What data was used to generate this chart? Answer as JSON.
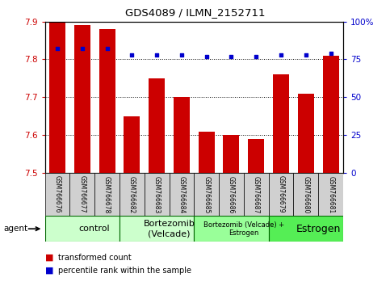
{
  "title": "GDS4089 / ILMN_2152711",
  "samples": [
    "GSM766676",
    "GSM766677",
    "GSM766678",
    "GSM766682",
    "GSM766683",
    "GSM766684",
    "GSM766685",
    "GSM766686",
    "GSM766687",
    "GSM766679",
    "GSM766680",
    "GSM766681"
  ],
  "bar_values": [
    7.9,
    7.89,
    7.88,
    7.65,
    7.75,
    7.7,
    7.61,
    7.6,
    7.59,
    7.76,
    7.71,
    7.81
  ],
  "percentile_values": [
    82,
    82,
    82,
    78,
    78,
    78,
    77,
    77,
    77,
    78,
    78,
    79
  ],
  "ylim": [
    7.5,
    7.9
  ],
  "y_ticks": [
    7.5,
    7.6,
    7.7,
    7.8,
    7.9
  ],
  "right_ylim": [
    0,
    100
  ],
  "right_yticks": [
    0,
    25,
    50,
    75,
    100
  ],
  "right_yticklabels": [
    "0",
    "25",
    "50",
    "75",
    "100%"
  ],
  "bar_color": "#CC0000",
  "dot_color": "#0000CC",
  "bar_width": 0.65,
  "groups": [
    {
      "label": "control",
      "start": 0,
      "end": 3,
      "color": "#CCFFCC",
      "fontsize": 8
    },
    {
      "label": "Bortezomib\n(Velcade)",
      "start": 3,
      "end": 6,
      "color": "#CCFFCC",
      "fontsize": 8
    },
    {
      "label": "Bortezomib (Velcade) +\nEstrogen",
      "start": 6,
      "end": 9,
      "color": "#99FF99",
      "fontsize": 6
    },
    {
      "label": "Estrogen",
      "start": 9,
      "end": 12,
      "color": "#55EE55",
      "fontsize": 9
    }
  ],
  "agent_label": "agent",
  "legend_bar_label": "transformed count",
  "legend_dot_label": "percentile rank within the sample",
  "tick_label_color_left": "#CC0000",
  "tick_label_color_right": "#0000CC",
  "sample_box_color": "#D0D0D0",
  "group_edge_color": "#006600"
}
